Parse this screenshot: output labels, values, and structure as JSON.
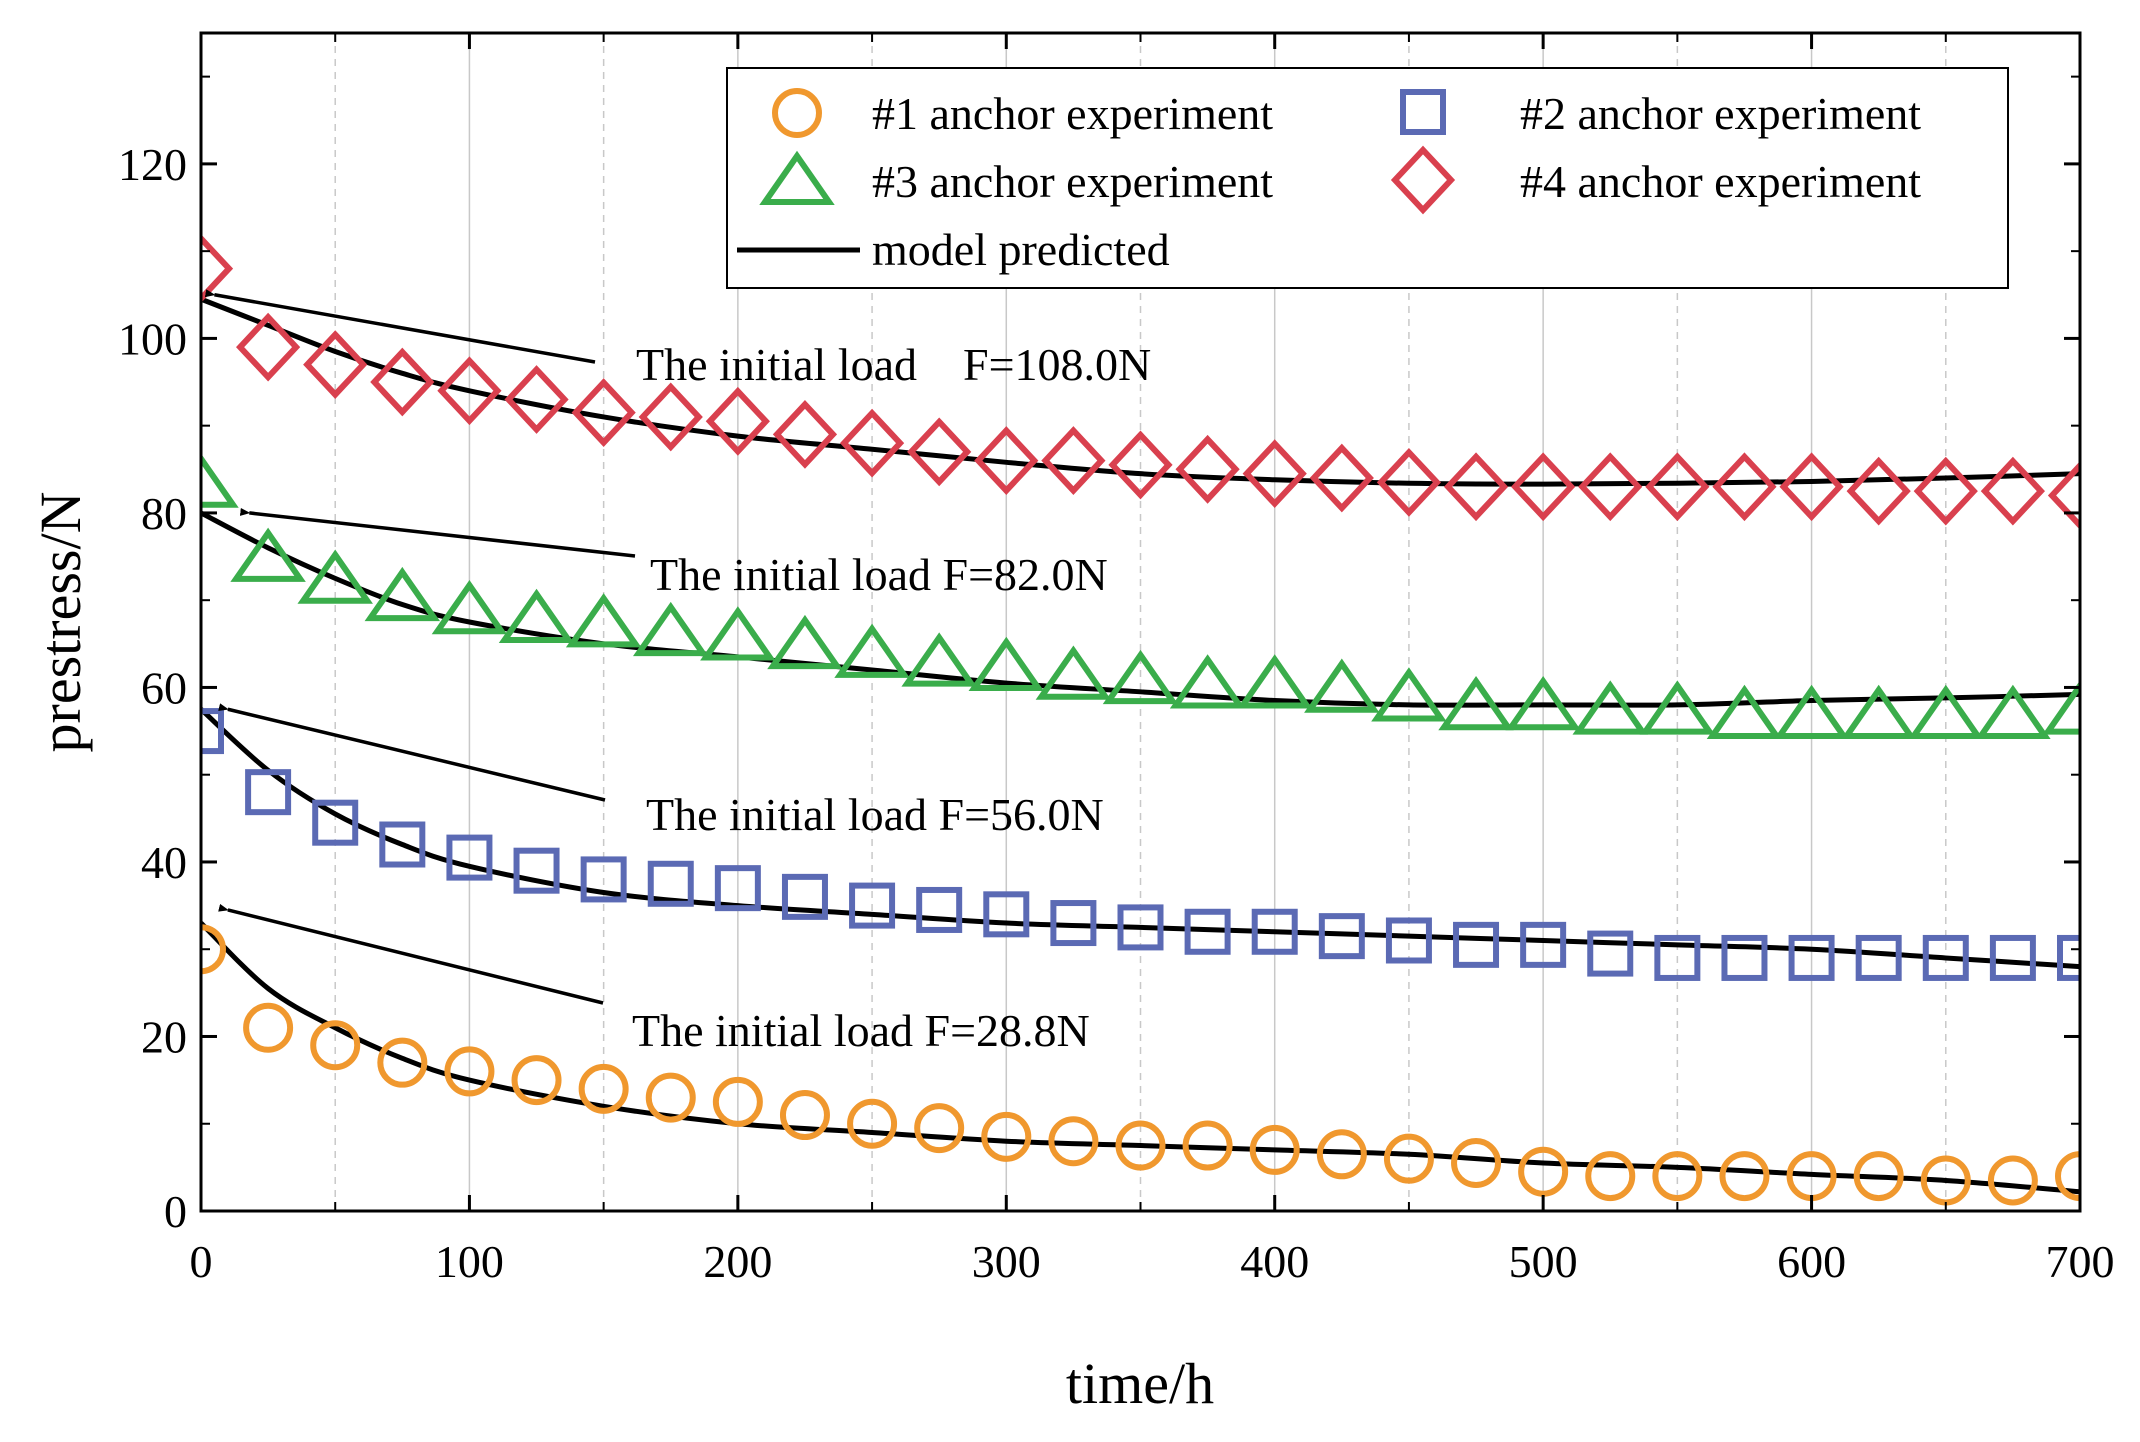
{
  "chart_data": {
    "type": "scatter",
    "title": "",
    "xlabel": "time/h",
    "ylabel": "prestress/N",
    "xlim": [
      0,
      700
    ],
    "ylim": [
      0,
      135
    ],
    "xticks": [
      0,
      100,
      200,
      300,
      400,
      500,
      600,
      700
    ],
    "yticks": [
      0,
      20,
      40,
      60,
      80,
      100,
      120
    ],
    "grid": "vertical dashed",
    "legend_position": "top-right",
    "series": [
      {
        "name": "#1 anchor experiment",
        "marker": "circle",
        "color": "#F0982E",
        "x": [
          0,
          25,
          50,
          75,
          100,
          125,
          150,
          175,
          200,
          225,
          250,
          275,
          300,
          325,
          350,
          375,
          400,
          425,
          450,
          475,
          500,
          525,
          550,
          575,
          600,
          625,
          650,
          675,
          700
        ],
        "y": [
          30,
          21,
          19,
          17,
          16,
          15,
          14,
          13,
          12.5,
          11,
          10,
          9.5,
          8.5,
          8,
          7.5,
          7.5,
          7,
          6.5,
          6,
          5.5,
          4.5,
          4,
          4,
          4,
          4,
          4,
          3.5,
          3.5,
          4
        ]
      },
      {
        "name": "#2 anchor experiment",
        "marker": "square",
        "color": "#5B6AB4",
        "x": [
          0,
          25,
          50,
          75,
          100,
          125,
          150,
          175,
          200,
          225,
          250,
          275,
          300,
          325,
          350,
          375,
          400,
          425,
          450,
          475,
          500,
          525,
          550,
          575,
          600,
          625,
          650,
          675,
          700
        ],
        "y": [
          55,
          48,
          44.5,
          42,
          40.5,
          39,
          38,
          37.5,
          37,
          36,
          35,
          34.5,
          34,
          33,
          32.5,
          32,
          32,
          31.5,
          31,
          30.5,
          30.5,
          29.5,
          29,
          29,
          29,
          29,
          29,
          29,
          29
        ]
      },
      {
        "name": "#3 anchor experiment",
        "marker": "triangle",
        "color": "#3AAD4B",
        "x": [
          0,
          25,
          50,
          75,
          100,
          125,
          150,
          175,
          200,
          225,
          250,
          275,
          300,
          325,
          350,
          375,
          400,
          425,
          450,
          475,
          500,
          525,
          550,
          575,
          600,
          625,
          650,
          675,
          700
        ],
        "y": [
          83,
          74.5,
          72,
          70,
          68.5,
          67.5,
          67,
          66,
          65.5,
          64.5,
          63.5,
          62.5,
          62,
          61,
          60.5,
          60,
          60,
          59.5,
          58.5,
          57.5,
          57.5,
          57,
          57,
          56.5,
          56.5,
          56.5,
          56.5,
          56.5,
          57
        ]
      },
      {
        "name": "#4 anchor experiment",
        "marker": "diamond",
        "color": "#D9404E",
        "x": [
          0,
          25,
          50,
          75,
          100,
          125,
          150,
          175,
          200,
          225,
          250,
          275,
          300,
          325,
          350,
          375,
          400,
          425,
          450,
          475,
          500,
          525,
          550,
          575,
          600,
          625,
          650,
          675,
          700
        ],
        "y": [
          108,
          99,
          97,
          95,
          94,
          93,
          91.5,
          91,
          90.5,
          89,
          88,
          87,
          86,
          86,
          85.5,
          85,
          84.5,
          84,
          83.5,
          83,
          83,
          83,
          83,
          83,
          83,
          82.5,
          82.5,
          82.5,
          82
        ]
      },
      {
        "name": "model predicted",
        "marker": "line",
        "color": "#000000",
        "curves": [
          {
            "x": [
              0,
              25,
              50,
              75,
              100,
              150,
              200,
              250,
              300,
              350,
              400,
              450,
              500,
              550,
              600,
              650,
              700
            ],
            "y": [
              33,
              25.5,
              21,
              17.5,
              15,
              12,
              10,
              9,
              8,
              7.5,
              7,
              6.5,
              5.5,
              5,
              4.2,
              3.5,
              2.2
            ]
          },
          {
            "x": [
              0,
              25,
              50,
              75,
              100,
              150,
              200,
              250,
              300,
              350,
              400,
              450,
              500,
              550,
              600,
              650,
              700
            ],
            "y": [
              57.5,
              50.5,
              45.5,
              42,
              39.5,
              36.5,
              35,
              34,
              33,
              32.5,
              32,
              31.5,
              31,
              30.5,
              30,
              29,
              28
            ]
          },
          {
            "x": [
              0,
              25,
              50,
              75,
              100,
              150,
              200,
              250,
              300,
              350,
              400,
              450,
              500,
              550,
              600,
              650,
              700
            ],
            "y": [
              80,
              76,
              72.5,
              69.5,
              67.5,
              65,
              63.5,
              62,
              60.5,
              59.5,
              58.5,
              58,
              58,
              58,
              58.5,
              58.8,
              59.2
            ]
          },
          {
            "x": [
              0,
              25,
              50,
              75,
              100,
              150,
              200,
              250,
              300,
              350,
              400,
              450,
              500,
              550,
              600,
              650,
              700
            ],
            "y": [
              104.5,
              101.5,
              98.5,
              96,
              94,
              91,
              88.8,
              87.3,
              85.8,
              84.5,
              83.8,
              83.4,
              83.3,
              83.4,
              83.6,
              84,
              84.5
            ]
          }
        ]
      }
    ],
    "annotations": [
      {
        "text": "The initial load    F=108.0N",
        "arrow_to": [
          5,
          105
        ]
      },
      {
        "text": "The initial load F=82.0N",
        "arrow_to": [
          18,
          80
        ]
      },
      {
        "text": "The initial load F=56.0N",
        "arrow_to": [
          10,
          57.5
        ]
      },
      {
        "text": "The initial load F=28.8N",
        "arrow_to": [
          10,
          34.5
        ]
      }
    ]
  }
}
